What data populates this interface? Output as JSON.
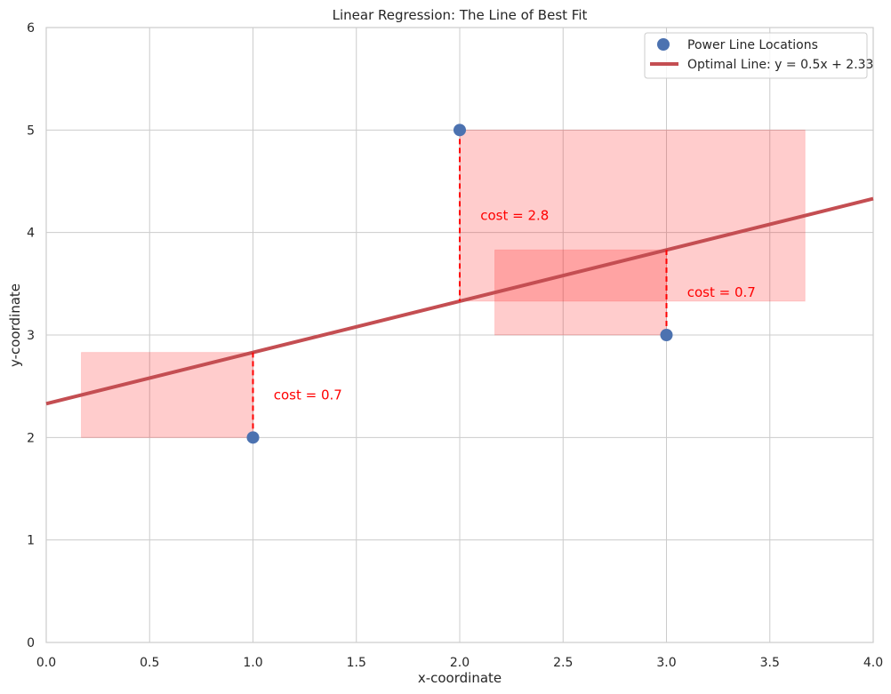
{
  "chart_data": {
    "type": "scatter",
    "title": "Linear Regression: The Line of Best Fit",
    "xlabel": "x-coordinate",
    "ylabel": "y-coordinate",
    "xlim": [
      0,
      4
    ],
    "ylim": [
      0,
      6
    ],
    "grid": true,
    "legend_position": "top-right",
    "x_ticks": [
      "0.0",
      "0.5",
      "1.0",
      "1.5",
      "2.0",
      "2.5",
      "3.0",
      "3.5",
      "4.0"
    ],
    "y_ticks": [
      "0",
      "1",
      "2",
      "3",
      "4",
      "5",
      "6"
    ],
    "points": {
      "name": "Power Line Locations",
      "color": "#4c72b0",
      "x": [
        1,
        2,
        3
      ],
      "y": [
        2,
        5,
        3
      ]
    },
    "line": {
      "name": "Optimal Line: y = 0.5x + 2.33",
      "color": "#c44e52",
      "slope": 0.5,
      "intercept": 2.33
    },
    "residuals": {
      "color": "#ff0000",
      "square_fill": "#ff0000",
      "labels": [
        "cost = 0.7",
        "cost = 2.8",
        "cost = 0.7"
      ]
    }
  }
}
